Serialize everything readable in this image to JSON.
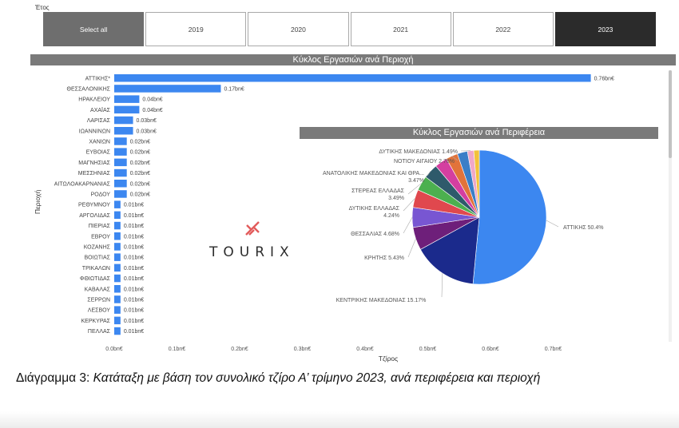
{
  "slicer": {
    "label": "Έτος",
    "options": [
      "Select all",
      "2019",
      "2020",
      "2021",
      "2022",
      "2023"
    ],
    "selected": "2023"
  },
  "caption": {
    "prefix": "Διάγραμμα 3: ",
    "text": "Κατάταξη με βάση τον συνολικό τζίρο Α’ τρίμηνο 2023, ανά περιφέρεια και περιοχή"
  },
  "logo": {
    "text": "TOURIX"
  },
  "colors": {
    "bar": "#3c87f0",
    "header": "#7a7a7a",
    "slicer_selected": "#2b2b2b"
  },
  "chart_data": [
    {
      "type": "bar",
      "orientation": "horizontal",
      "title": "Κύκλος Εργασιών ανά Περιοχή",
      "xlabel": "Τζίρος",
      "ylabel": "Περιοχή",
      "xlim": [
        0,
        0.8
      ],
      "xticks": [
        "0.0bn€",
        "0.1bn€",
        "0.2bn€",
        "0.3bn€",
        "0.4bn€",
        "0.5bn€",
        "0.6bn€",
        "0.7bn€"
      ],
      "categories": [
        "ΑΤΤΙΚΗΣ*",
        "ΘΕΣΣΑΛΟΝΙΚΗΣ",
        "ΗΡΑΚΛΕΙΟΥ",
        "ΑΧΑΪΑΣ",
        "ΛΑΡΙΣΑΣ",
        "ΙΩΑΝΝΙΝΩΝ",
        "ΧΑΝΙΩΝ",
        "ΕΥΒΟΙΑΣ",
        "ΜΑΓΝΗΣΙΑΣ",
        "ΜΕΣΣΗΝΙΑΣ",
        "ΑΙΤΩΛΟΑΚΑΡΝΑΝΙΑΣ",
        "ΡΟΔΟΥ",
        "ΡΕΘΥΜΝΟΥ",
        "ΑΡΓΟΛΙΔΑΣ",
        "ΠΙΕΡΙΑΣ",
        "ΕΒΡΟΥ",
        "ΚΟΖΑΝΗΣ",
        "ΒΟΙΩΤΙΑΣ",
        "ΤΡΙΚΑΛΩΝ",
        "ΦΘΙΩΤΙΔΑΣ",
        "ΚΑΒΑΛΑΣ",
        "ΣΕΡΡΩΝ",
        "ΛΕΣΒΟΥ",
        "ΚΕΡΚΥΡΑΣ",
        "ΠΕΛΛΑΣ"
      ],
      "values": [
        0.76,
        0.17,
        0.04,
        0.04,
        0.03,
        0.03,
        0.02,
        0.02,
        0.02,
        0.02,
        0.02,
        0.02,
        0.01,
        0.01,
        0.01,
        0.01,
        0.01,
        0.01,
        0.01,
        0.01,
        0.01,
        0.01,
        0.01,
        0.01,
        0.01
      ],
      "labels": [
        "0.76bn€",
        "0.17bn€",
        "0.04bn€",
        "0.04bn€",
        "0.03bn€",
        "0.03bn€",
        "0.02bn€",
        "0.02bn€",
        "0.02bn€",
        "0.02bn€",
        "0.02bn€",
        "0.02bn€",
        "0.01bn€",
        "0.01bn€",
        "0.01bn€",
        "0.01bn€",
        "0.01bn€",
        "0.01bn€",
        "0.01bn€",
        "0.01bn€",
        "0.01bn€",
        "0.01bn€",
        "0.01bn€",
        "0.01bn€",
        "0.01bn€"
      ],
      "grid": false
    },
    {
      "type": "pie",
      "title": "Κύκλος Εργασιών ανά Περιφέρεια",
      "slices": [
        {
          "label": "ΑΤΤΙΚΗΣ 50.4%",
          "value": 50.4,
          "color": "#3c87f0"
        },
        {
          "label": "ΚΕΝΤΡΙΚΗΣ ΜΑΚΕΔΟΝΙΑΣ 15.17%",
          "value": 15.17,
          "color": "#1b2a8c"
        },
        {
          "label": "ΚΡΗΤΗΣ 5.43%",
          "value": 5.43,
          "color": "#6e1f7a"
        },
        {
          "label": "ΘΕΣΣΑΛΙΑΣ 4.68%",
          "value": 4.68,
          "color": "#7856d2"
        },
        {
          "label": "ΔΥΤΙΚΗΣ ΕΛΛΑΔΑΣ 4.24%",
          "value": 4.24,
          "color": "#e0484e"
        },
        {
          "label": "ΣΤΕΡΕΑΣ ΕΛΛΑΔΑΣ 3.49%",
          "value": 3.49,
          "color": "#4cb04f"
        },
        {
          "label": "ΑΝΑΤΟΛΙΚΗΣ ΜΑΚΕΔΟΝΙΑΣ ΚΑΙ ΘΡΑ... 3.47%",
          "value": 3.47,
          "color": "#2e5a6b"
        },
        {
          "label": "",
          "value": 3.0,
          "color": "#d43fa0"
        },
        {
          "label": "ΝΟΤΙΟΥ ΑΙΓΑΙΟΥ 2.78%",
          "value": 2.78,
          "color": "#e2733a"
        },
        {
          "label": "",
          "value": 2.4,
          "color": "#3a7ec7"
        },
        {
          "label": "ΔΥΤΙΚΗΣ ΜΑΚΕΔΟΝΙΑΣ 1.49%",
          "value": 1.49,
          "color": "#f0a8c8"
        },
        {
          "label": "",
          "value": 1.3,
          "color": "#f2c23a"
        }
      ]
    }
  ]
}
